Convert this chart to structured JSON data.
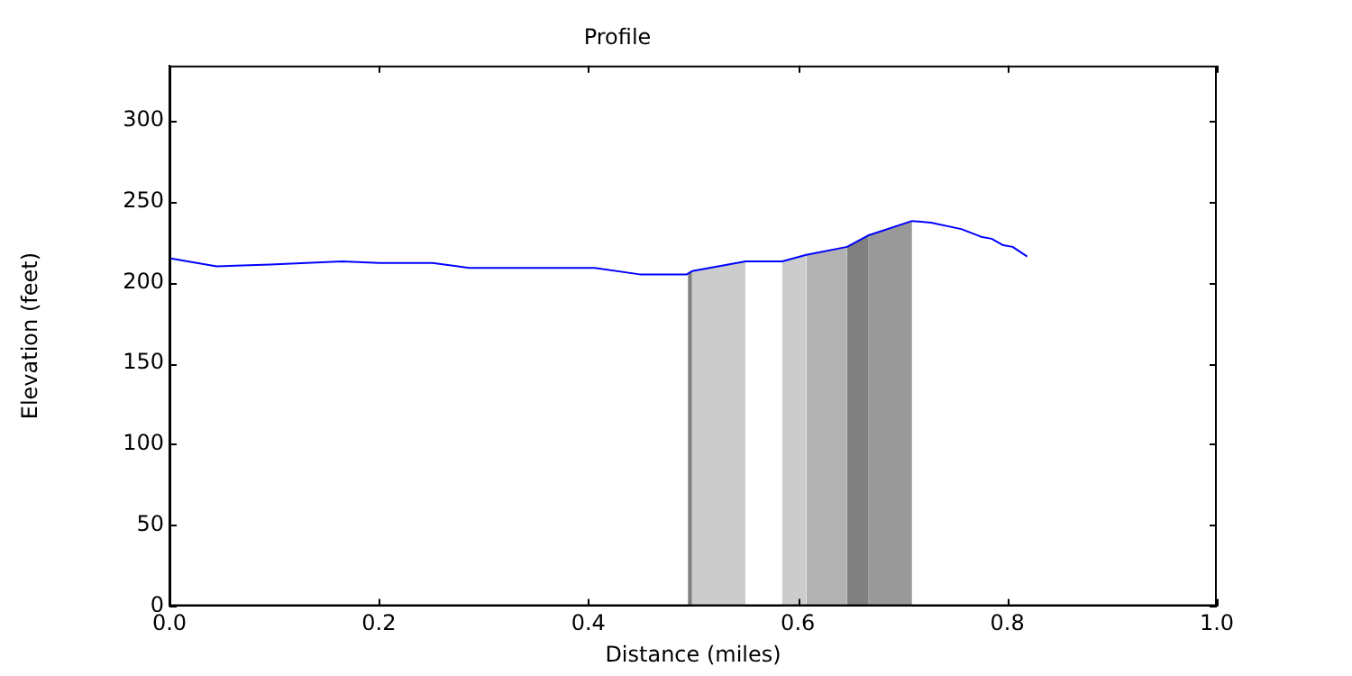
{
  "chart_data": {
    "type": "line",
    "title": "Profile",
    "xlabel": "Distance (miles)",
    "ylabel": "Elevation (feet)",
    "xlim": [
      0,
      1
    ],
    "xticks": [
      {
        "value": 0,
        "label": "0.0"
      },
      {
        "value": 0.2,
        "label": "0.2"
      },
      {
        "value": 0.4,
        "label": "0.4"
      },
      {
        "value": 0.6,
        "label": "0.6"
      },
      {
        "value": 0.8,
        "label": "0.8"
      },
      {
        "value": 1,
        "label": "1.0"
      }
    ],
    "ylim": [
      0,
      334
    ],
    "yticks": [
      0,
      50,
      100,
      150,
      200,
      250,
      300
    ],
    "grid": false,
    "legend": false,
    "series": [
      {
        "type": "area",
        "color": "#808080",
        "x": [
          0.495,
          0.499
        ],
        "values": [
          206,
          207
        ]
      },
      {
        "type": "area",
        "color": "#cccccc",
        "x": [
          0.499,
          0.55
        ],
        "values": [
          207,
          213
        ]
      },
      {
        "type": "area",
        "color": "#cccccc",
        "x": [
          0.585,
          0.608
        ],
        "values": [
          213,
          217
        ]
      },
      {
        "type": "area",
        "color": "#b2b2b2",
        "x": [
          0.608,
          0.647
        ],
        "values": [
          217,
          222
        ]
      },
      {
        "type": "area",
        "color": "#808080",
        "x": [
          0.647,
          0.667
        ],
        "values": [
          222,
          229
        ]
      },
      {
        "type": "area",
        "color": "#999999",
        "x": [
          0.667,
          0.709
        ],
        "values": [
          229,
          238
        ]
      },
      {
        "type": "line",
        "color": "#0000ff",
        "x": [
          0,
          0.045,
          0.096,
          0.165,
          0.2,
          0.251,
          0.286,
          0.406,
          0.449,
          0.494,
          0.499,
          0.55,
          0.585,
          0.608,
          0.647,
          0.667,
          0.709,
          0.727,
          0.756,
          0.776,
          0.785,
          0.796,
          0.805,
          0.819
        ],
        "values": [
          215,
          210,
          211,
          213,
          212,
          212,
          209,
          209,
          205,
          205,
          207,
          213,
          213,
          217,
          222,
          229,
          238,
          237,
          233,
          228,
          227,
          223,
          222,
          216
        ]
      }
    ]
  }
}
